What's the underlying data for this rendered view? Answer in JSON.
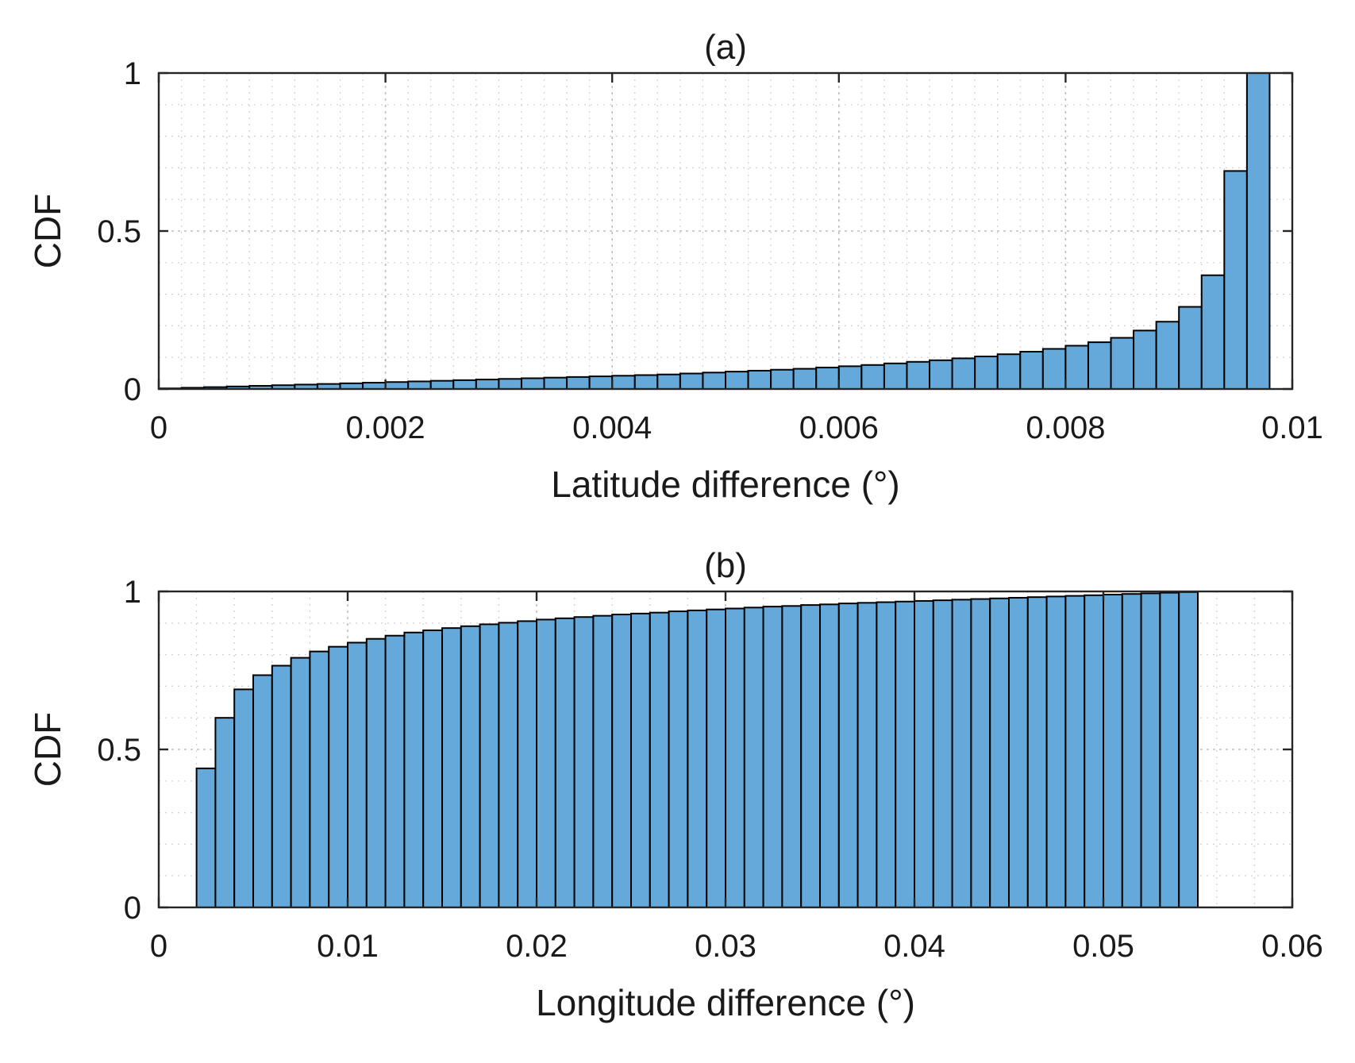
{
  "chart_data": [
    {
      "type": "bar",
      "title": "(a)",
      "xlabel": "Latitude difference (°)",
      "ylabel": "CDF",
      "xlim": [
        0,
        0.01
      ],
      "ylim": [
        0,
        1
      ],
      "xticks": [
        0,
        0.002,
        0.004,
        0.006,
        0.008,
        0.01
      ],
      "xtick_labels": [
        "0",
        "0.002",
        "0.004",
        "0.006",
        "0.008",
        "0.01"
      ],
      "yticks": [
        0,
        0.5,
        1
      ],
      "ytick_labels": [
        "0",
        "0.5",
        "1"
      ],
      "xminor_step": 0.0002,
      "yminor_step": 0.1,
      "grid": true,
      "bin_start": 0.0,
      "bin_width": 0.0002,
      "values": [
        0.002,
        0.004,
        0.006,
        0.008,
        0.01,
        0.012,
        0.014,
        0.016,
        0.018,
        0.02,
        0.022,
        0.024,
        0.026,
        0.028,
        0.03,
        0.032,
        0.034,
        0.036,
        0.038,
        0.04,
        0.042,
        0.044,
        0.046,
        0.049,
        0.052,
        0.055,
        0.058,
        0.061,
        0.064,
        0.068,
        0.072,
        0.076,
        0.081,
        0.086,
        0.091,
        0.097,
        0.103,
        0.11,
        0.118,
        0.127,
        0.137,
        0.148,
        0.162,
        0.185,
        0.213,
        0.26,
        0.36,
        0.69,
        1.0
      ]
    },
    {
      "type": "bar",
      "title": "(b)",
      "xlabel": "Longitude difference (°)",
      "ylabel": "CDF",
      "xlim": [
        0,
        0.06
      ],
      "ylim": [
        0,
        1
      ],
      "xticks": [
        0,
        0.01,
        0.02,
        0.03,
        0.04,
        0.05,
        0.06
      ],
      "xtick_labels": [
        "0",
        "0.01",
        "0.02",
        "0.03",
        "0.04",
        "0.05",
        "0.06"
      ],
      "yticks": [
        0,
        0.5,
        1
      ],
      "ytick_labels": [
        "0",
        "0.5",
        "1"
      ],
      "xminor_step": 0.002,
      "yminor_step": 0.1,
      "grid": true,
      "bin_start": 0.002,
      "bin_width": 0.001,
      "values": [
        0.44,
        0.6,
        0.69,
        0.735,
        0.765,
        0.79,
        0.81,
        0.825,
        0.838,
        0.85,
        0.86,
        0.87,
        0.877,
        0.884,
        0.89,
        0.896,
        0.901,
        0.906,
        0.911,
        0.915,
        0.919,
        0.923,
        0.927,
        0.93,
        0.933,
        0.937,
        0.94,
        0.943,
        0.946,
        0.949,
        0.952,
        0.954,
        0.957,
        0.959,
        0.962,
        0.964,
        0.966,
        0.968,
        0.97,
        0.972,
        0.974,
        0.976,
        0.978,
        0.98,
        0.982,
        0.984,
        0.986,
        0.988,
        0.99,
        0.992,
        0.994,
        0.996,
        0.998
      ]
    }
  ]
}
